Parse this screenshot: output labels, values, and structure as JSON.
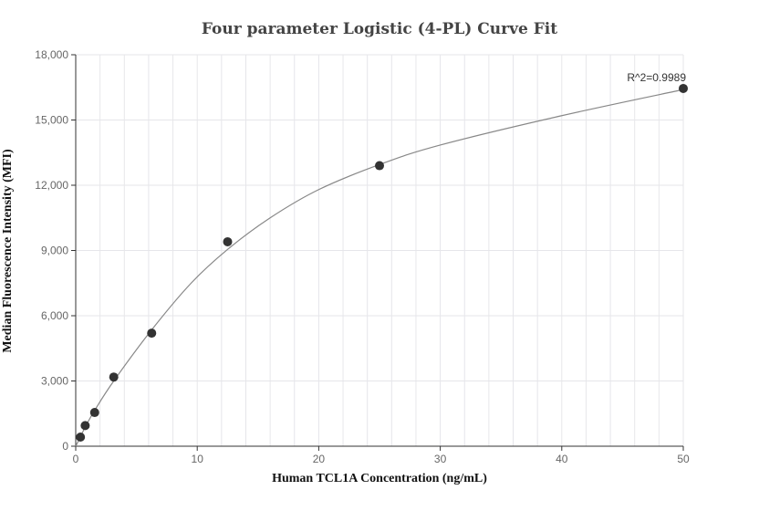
{
  "chart_data": {
    "type": "scatter",
    "title": "Four parameter Logistic (4-PL) Curve Fit",
    "xlabel": "Human TCL1A Concentration (ng/mL)",
    "ylabel": "Median Fluorescence Intensity (MFI)",
    "xlim": [
      0,
      50
    ],
    "ylim": [
      0,
      18000
    ],
    "x_ticks": [
      0,
      10,
      20,
      30,
      40,
      50
    ],
    "y_ticks": [
      0,
      3000,
      6000,
      9000,
      12000,
      15000,
      18000
    ],
    "x_tick_labels": [
      "0",
      "10",
      "20",
      "30",
      "40",
      "50"
    ],
    "y_tick_labels": [
      "0",
      "3,000",
      "6,000",
      "9,000",
      "12,000",
      "15,000",
      "18,000"
    ],
    "grid": true,
    "series": [
      {
        "points": [
          {
            "x": 0.39,
            "y": 420
          },
          {
            "x": 0.78,
            "y": 950
          },
          {
            "x": 1.56,
            "y": 1550
          },
          {
            "x": 3.13,
            "y": 3180
          },
          {
            "x": 6.25,
            "y": 5200
          },
          {
            "x": 12.5,
            "y": 9400
          },
          {
            "x": 25,
            "y": 12900
          },
          {
            "x": 50,
            "y": 16450
          }
        ]
      }
    ],
    "fit_curve": {
      "x": [
        0,
        0.39,
        0.78,
        1.56,
        3.13,
        6.25,
        9.5,
        12.5,
        16,
        20,
        25,
        30,
        40,
        50
      ],
      "y": [
        0,
        430,
        880,
        1650,
        3000,
        5350,
        7500,
        9050,
        10500,
        11800,
        12950,
        13850,
        15200,
        16400
      ]
    },
    "annotations": [
      {
        "text": "R^2=0.9989",
        "x": 50,
        "y": 16450
      }
    ],
    "colors": {
      "points": "#333333",
      "curve": "#888888",
      "grid": "#e6e6ea",
      "axis": "#333333"
    }
  }
}
